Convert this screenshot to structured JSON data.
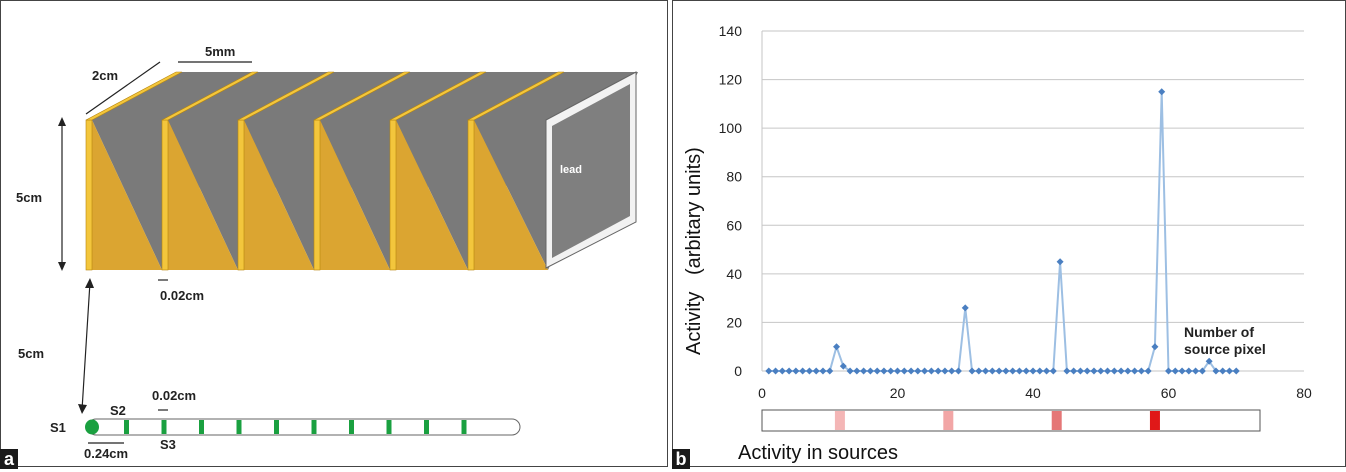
{
  "panel_a": {
    "tag": "a",
    "dim_width": "2cm",
    "dim_gap": "5mm",
    "dim_height": "5cm",
    "dim_thickness": "0.02cm",
    "dim_distance": "5cm",
    "lead_label": "lead",
    "source_label_s1": "S1",
    "source_label_s2": "S2",
    "source_label_s3": "S3",
    "source_gap": "0.02cm",
    "source_pitch": "0.24cm"
  },
  "panel_b": {
    "tag": "b",
    "annotation": "Number of source pixel",
    "annotation_line1": "Number of",
    "annotation_line2": "source pixel",
    "strip_label": "Activity in sources"
  },
  "chart_data": {
    "type": "line",
    "ylabel": "Activity   (arbitary units)",
    "xlabel": "",
    "xlim": [
      0,
      80
    ],
    "ylim": [
      0,
      140
    ],
    "xticks": [
      0,
      20,
      40,
      60,
      80
    ],
    "yticks": [
      0,
      20,
      40,
      60,
      80,
      100,
      120,
      140
    ],
    "grid": "horizontal",
    "series": [
      {
        "color": "#4a7fc1",
        "line_color": "#9dbfe3",
        "x": [
          1,
          2,
          3,
          4,
          5,
          6,
          7,
          8,
          9,
          10,
          11,
          12,
          13,
          14,
          15,
          16,
          17,
          18,
          19,
          20,
          21,
          22,
          23,
          24,
          25,
          26,
          27,
          28,
          29,
          30,
          31,
          32,
          33,
          34,
          35,
          36,
          37,
          38,
          39,
          40,
          41,
          42,
          43,
          44,
          45,
          46,
          47,
          48,
          49,
          50,
          51,
          52,
          53,
          54,
          55,
          56,
          57,
          58,
          59,
          60,
          61,
          62,
          63,
          64,
          65,
          66,
          67,
          68,
          69,
          70
        ],
        "y": [
          0,
          0,
          0,
          0,
          0,
          0,
          0,
          0,
          0,
          0,
          10,
          2,
          0,
          0,
          0,
          0,
          0,
          0,
          0,
          0,
          0,
          0,
          0,
          0,
          0,
          0,
          0,
          0,
          0,
          26,
          0,
          0,
          0,
          0,
          0,
          0,
          0,
          0,
          0,
          0,
          0,
          0,
          0,
          45,
          0,
          0,
          0,
          0,
          0,
          0,
          0,
          0,
          0,
          0,
          0,
          0,
          0,
          10,
          115,
          0,
          0,
          0,
          0,
          0,
          0,
          4,
          0,
          0,
          0,
          0
        ]
      }
    ],
    "strip_cells": [
      {
        "x": 11.5,
        "color": "#f4b6b6"
      },
      {
        "x": 27.5,
        "color": "#f2a6a6"
      },
      {
        "x": 43.5,
        "color": "#e57777"
      },
      {
        "x": 58,
        "color": "#e01818"
      }
    ]
  }
}
